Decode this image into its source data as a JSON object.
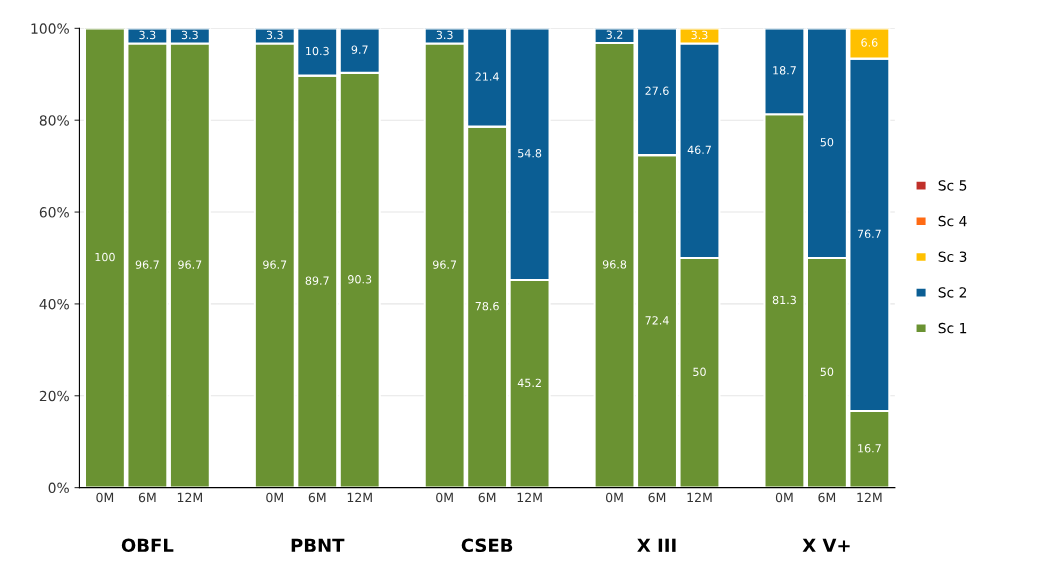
{
  "chart_data": {
    "type": "bar",
    "stacked": true,
    "categories": [
      "0M",
      "6M",
      "12M",
      null,
      "0M",
      "6M",
      "12M",
      null,
      "0M",
      "6M",
      "12M",
      null,
      "0M",
      "6M",
      "12M",
      null,
      "0M",
      "6M",
      "12M"
    ],
    "series": [
      {
        "name": "Sc 1",
        "color": "#6a9232",
        "values": [
          100,
          96.7,
          96.7,
          null,
          96.7,
          89.7,
          90.3,
          null,
          96.7,
          78.6,
          45.2,
          null,
          96.8,
          72.4,
          50,
          null,
          81.3,
          50,
          16.7
        ]
      },
      {
        "name": "Sc 2",
        "color": "#0b5e94",
        "values": [
          null,
          3.3,
          3.3,
          null,
          3.3,
          10.3,
          9.7,
          null,
          3.3,
          21.4,
          54.8,
          null,
          3.2,
          27.6,
          46.7,
          null,
          18.7,
          50,
          76.7
        ]
      },
      {
        "name": "Sc 3",
        "color": "#ffc000",
        "values": [
          null,
          null,
          null,
          null,
          null,
          null,
          null,
          null,
          null,
          null,
          null,
          null,
          null,
          null,
          3.3,
          null,
          null,
          null,
          6.6
        ]
      },
      {
        "name": "Sc 4",
        "color": "#ff6a13",
        "values": [
          null,
          null,
          null,
          null,
          null,
          null,
          null,
          null,
          null,
          null,
          null,
          null,
          null,
          null,
          null,
          null,
          null,
          null,
          null
        ]
      },
      {
        "name": "Sc 5",
        "color": "#c0302a",
        "values": [
          null,
          null,
          null,
          null,
          null,
          null,
          null,
          null,
          null,
          null,
          null,
          null,
          null,
          null,
          null,
          null,
          null,
          null,
          null
        ]
      }
    ],
    "annotations": [
      "OBFL",
      "PBNT",
      "CSEB",
      "X III",
      "X V+"
    ],
    "ylim": [
      0,
      100
    ],
    "yticks": [
      {
        "value": 0,
        "label": "0%"
      },
      {
        "value": 20,
        "label": "20%"
      },
      {
        "value": 40,
        "label": "40%"
      },
      {
        "value": 60,
        "label": "60%"
      },
      {
        "value": 80,
        "label": "80%"
      },
      {
        "value": 100,
        "label": "100%"
      }
    ],
    "grid": "y",
    "legend": "right",
    "data_labels": true
  }
}
